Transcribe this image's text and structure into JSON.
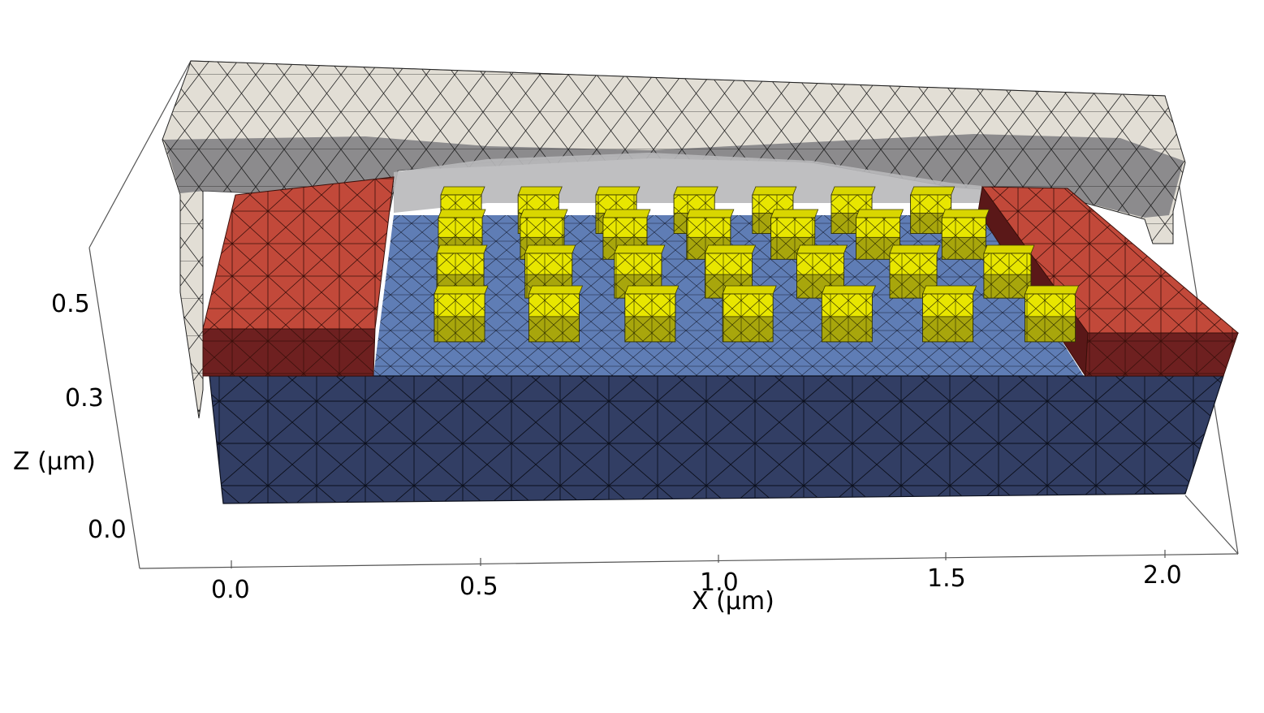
{
  "axes": {
    "x_label": "X (μm)",
    "z_label": "Z (μm)",
    "x_ticks": [
      "0.0",
      "0.5",
      "1.0",
      "1.5",
      "2.0"
    ],
    "z_ticks": [
      "0.0",
      "0.3",
      "0.5"
    ]
  },
  "layers": {
    "substrate_color": "#323e64",
    "top_surface_color": "#5f7db5",
    "electrode_color": "#c2493a",
    "electrode_side_color": "#6e2020",
    "cap_color": "#e2ded5",
    "cap_inner_color": "#8d8d8d",
    "cube_color": "#e8e600",
    "cube_side_color": "#9c9a10"
  },
  "cube_grid": {
    "rows": 4,
    "columns": 7
  }
}
